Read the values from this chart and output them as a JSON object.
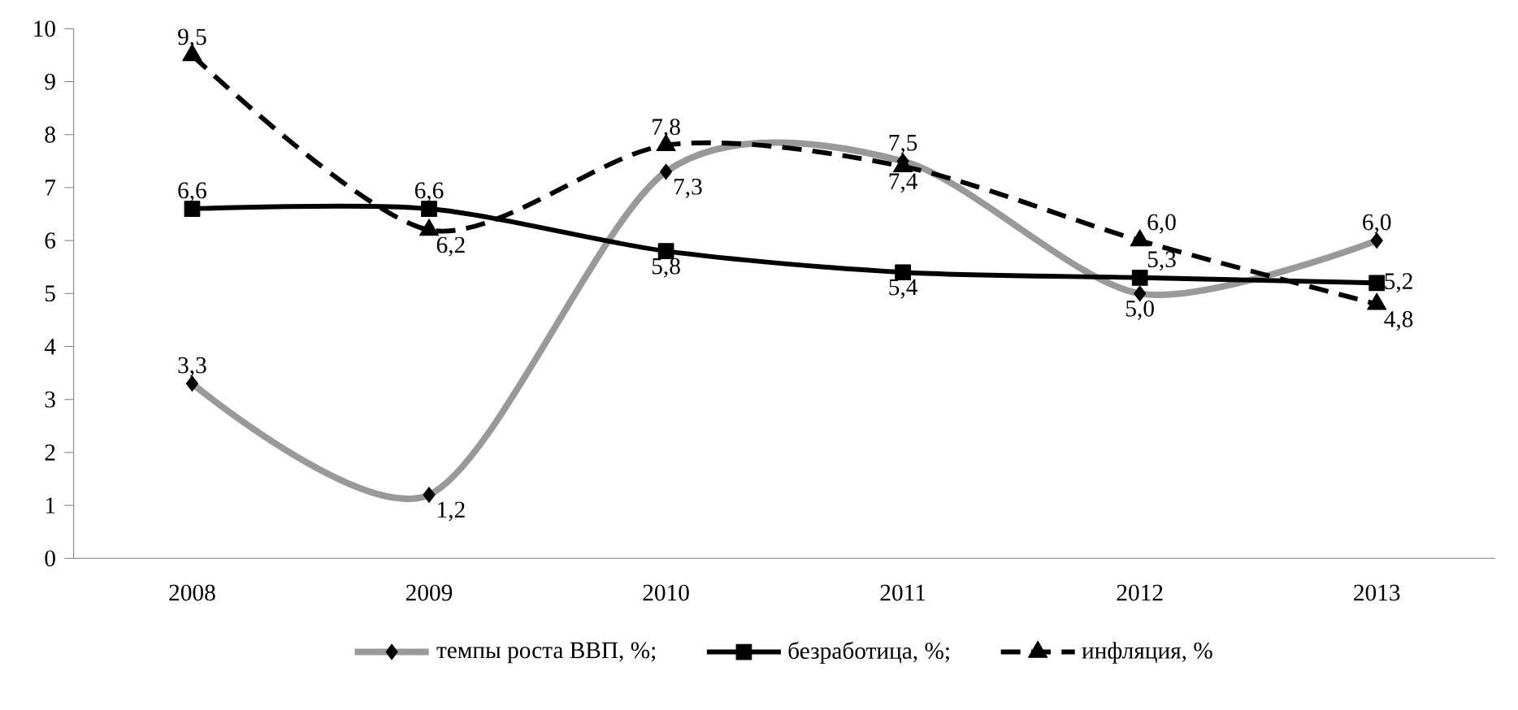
{
  "chart_data": {
    "type": "line",
    "categories": [
      "2008",
      "2009",
      "2010",
      "2011",
      "2012",
      "2013"
    ],
    "series": [
      {
        "name": "темпы роста ВВП, %;",
        "color": "#999999",
        "marker": "diamond",
        "line_style": "solid",
        "values": [
          3.3,
          1.2,
          7.3,
          7.5,
          5.0,
          6.0
        ],
        "value_labels": [
          "3,3",
          "1,2",
          "7,3",
          "7,5",
          "5,0",
          "6,0"
        ]
      },
      {
        "name": "безработица, %;",
        "color": "#000000",
        "marker": "square",
        "line_style": "solid",
        "values": [
          6.6,
          6.6,
          5.8,
          5.4,
          5.3,
          5.2
        ],
        "value_labels": [
          "6,6",
          "6,6",
          "5,8",
          "5,4",
          "5,3",
          "5,2"
        ]
      },
      {
        "name": "инфляция, %",
        "color": "#000000",
        "marker": "triangle",
        "line_style": "dashed",
        "values": [
          9.5,
          6.2,
          7.8,
          7.4,
          6.0,
          4.8
        ],
        "value_labels": [
          "9,5",
          "6,2",
          "7,8",
          "7,4",
          "6,0",
          "4,8"
        ]
      }
    ],
    "ylim": [
      0,
      10
    ],
    "yticks": [
      0,
      1,
      2,
      3,
      4,
      5,
      6,
      7,
      8,
      9,
      10
    ],
    "legend": "bottom"
  }
}
